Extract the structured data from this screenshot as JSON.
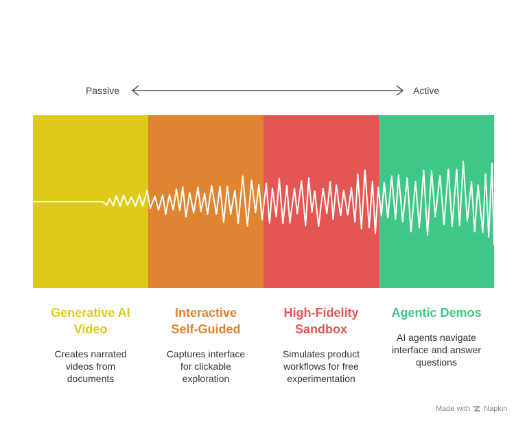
{
  "axis": {
    "left_label": "Passive",
    "right_label": "Active"
  },
  "stages": [
    {
      "title_lines": [
        "Generative AI",
        "Video"
      ],
      "desc_lines": [
        "Creates narrated",
        "videos from",
        "documents"
      ],
      "color": "#DFCB17"
    },
    {
      "title_lines": [
        "Interactive",
        "Self-Guided"
      ],
      "desc_lines": [
        "Captures interface",
        "for clickable",
        "exploration"
      ],
      "color": "#DF8430"
    },
    {
      "title_lines": [
        "High-Fidelity",
        "Sandbox"
      ],
      "desc_lines": [
        "Simulates product",
        "workflows for free",
        "experimentation"
      ],
      "color": "#E45654"
    },
    {
      "title_lines": [
        "Agentic Demos"
      ],
      "desc_lines": [
        "AI agents navigate",
        "interface and answer",
        "questions"
      ],
      "color": "#3EC786"
    }
  ],
  "footer": {
    "made_with": "Made with",
    "brand": "Napkin"
  }
}
